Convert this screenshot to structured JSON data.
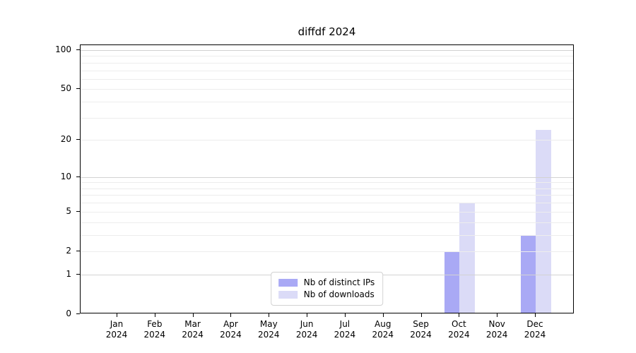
{
  "chart_data": {
    "type": "bar",
    "title": "diffdf 2024",
    "categories": [
      "Jan 2024",
      "Feb 2024",
      "Mar 2024",
      "Apr 2024",
      "May 2024",
      "Jun 2024",
      "Jul 2024",
      "Aug 2024",
      "Sep 2024",
      "Oct 2024",
      "Nov 2024",
      "Dec 2024"
    ],
    "series": [
      {
        "name": "Nb of distinct IPs",
        "color": "#a9a9f5",
        "values": [
          0,
          0,
          0,
          0,
          0,
          0,
          0,
          0,
          0,
          2,
          0,
          3
        ]
      },
      {
        "name": "Nb of downloads",
        "color": "#dbdbf7",
        "values": [
          0,
          0,
          0,
          0,
          0,
          0,
          0,
          0,
          0,
          6,
          0,
          24
        ]
      }
    ],
    "yscale": "log1p",
    "ylim": [
      0,
      110
    ],
    "y_ticks": [
      100,
      50,
      20,
      10,
      5,
      2,
      1,
      0
    ],
    "grid_minor_values": [
      2,
      3,
      4,
      5,
      6,
      7,
      8,
      9,
      20,
      30,
      40,
      50,
      60,
      70,
      80,
      90
    ],
    "grid_major_values": [
      1,
      10,
      100
    ],
    "grid_minor_color": "#ededed",
    "grid_major_color": "#d2d2d2",
    "axis_color": "#000000",
    "legend_position": "lower center",
    "xlabel": "",
    "ylabel": ""
  }
}
